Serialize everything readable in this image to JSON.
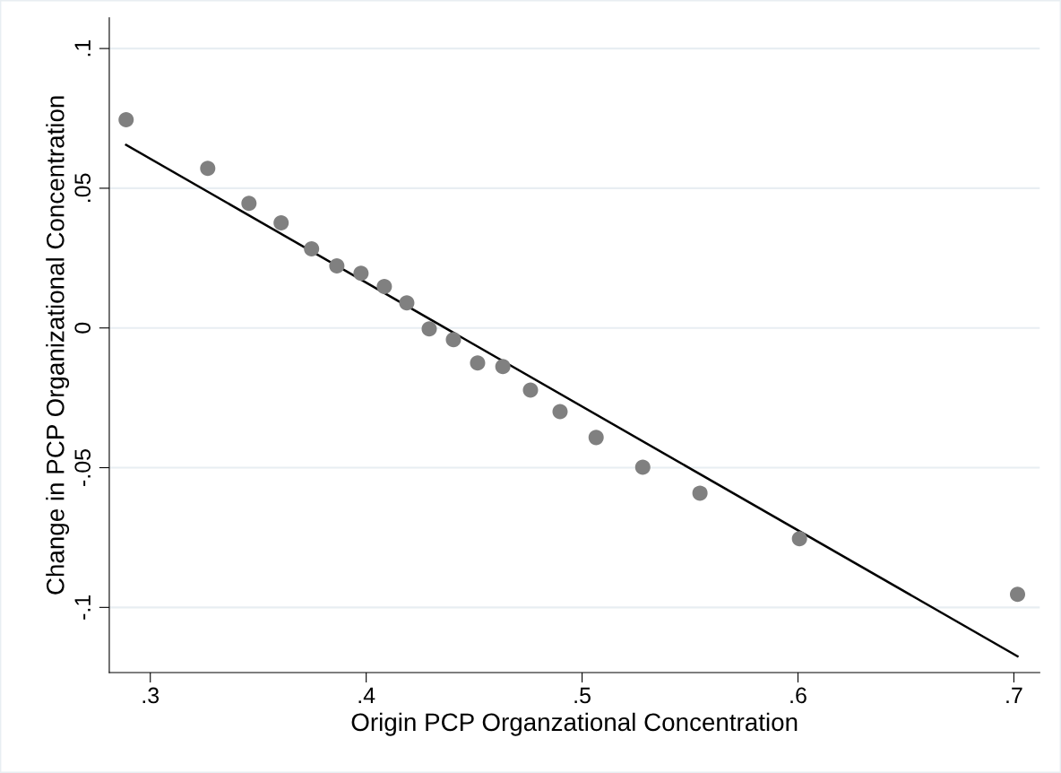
{
  "chart_data": {
    "type": "scatter",
    "xlabel": "Origin PCP Organzational Concentration",
    "ylabel": "Change in PCP Organizational Concentration",
    "xlim": [
      0.281,
      0.712
    ],
    "ylim": [
      -0.1233,
      0.111
    ],
    "xticks": [
      {
        "value": 0.3,
        "label": ".3"
      },
      {
        "value": 0.4,
        "label": ".4"
      },
      {
        "value": 0.5,
        "label": ".5"
      },
      {
        "value": 0.6,
        "label": ".6"
      },
      {
        "value": 0.7,
        "label": ".7"
      }
    ],
    "yticks": [
      {
        "value": -0.1,
        "label": "-.1"
      },
      {
        "value": -0.05,
        "label": "-.05"
      },
      {
        "value": 0,
        "label": "0"
      },
      {
        "value": 0.05,
        "label": ".05"
      },
      {
        "value": 0.1,
        "label": ".1"
      }
    ],
    "grid": "y",
    "series": [
      {
        "marker": "circle",
        "color": "#808080",
        "x": [
          0.2888,
          0.3266,
          0.3457,
          0.3606,
          0.3747,
          0.3864,
          0.3976,
          0.4084,
          0.4188,
          0.4292,
          0.4404,
          0.4516,
          0.4633,
          0.4761,
          0.4898,
          0.5065,
          0.5281,
          0.5546,
          0.6007,
          0.7017
        ],
        "values": [
          0.0745,
          0.0571,
          0.0446,
          0.0376,
          0.0283,
          0.0222,
          0.0196,
          0.0148,
          0.009,
          -0.0003,
          -0.0042,
          -0.0125,
          -0.0138,
          -0.0222,
          -0.0299,
          -0.0392,
          -0.0498,
          -0.0591,
          -0.0754,
          -0.0953
        ]
      },
      {
        "type": "line",
        "color": "#000000",
        "line_style": "solid",
        "x": [
          0.2888,
          0.7017
        ],
        "values": [
          0.0655,
          -0.1175
        ]
      }
    ]
  }
}
